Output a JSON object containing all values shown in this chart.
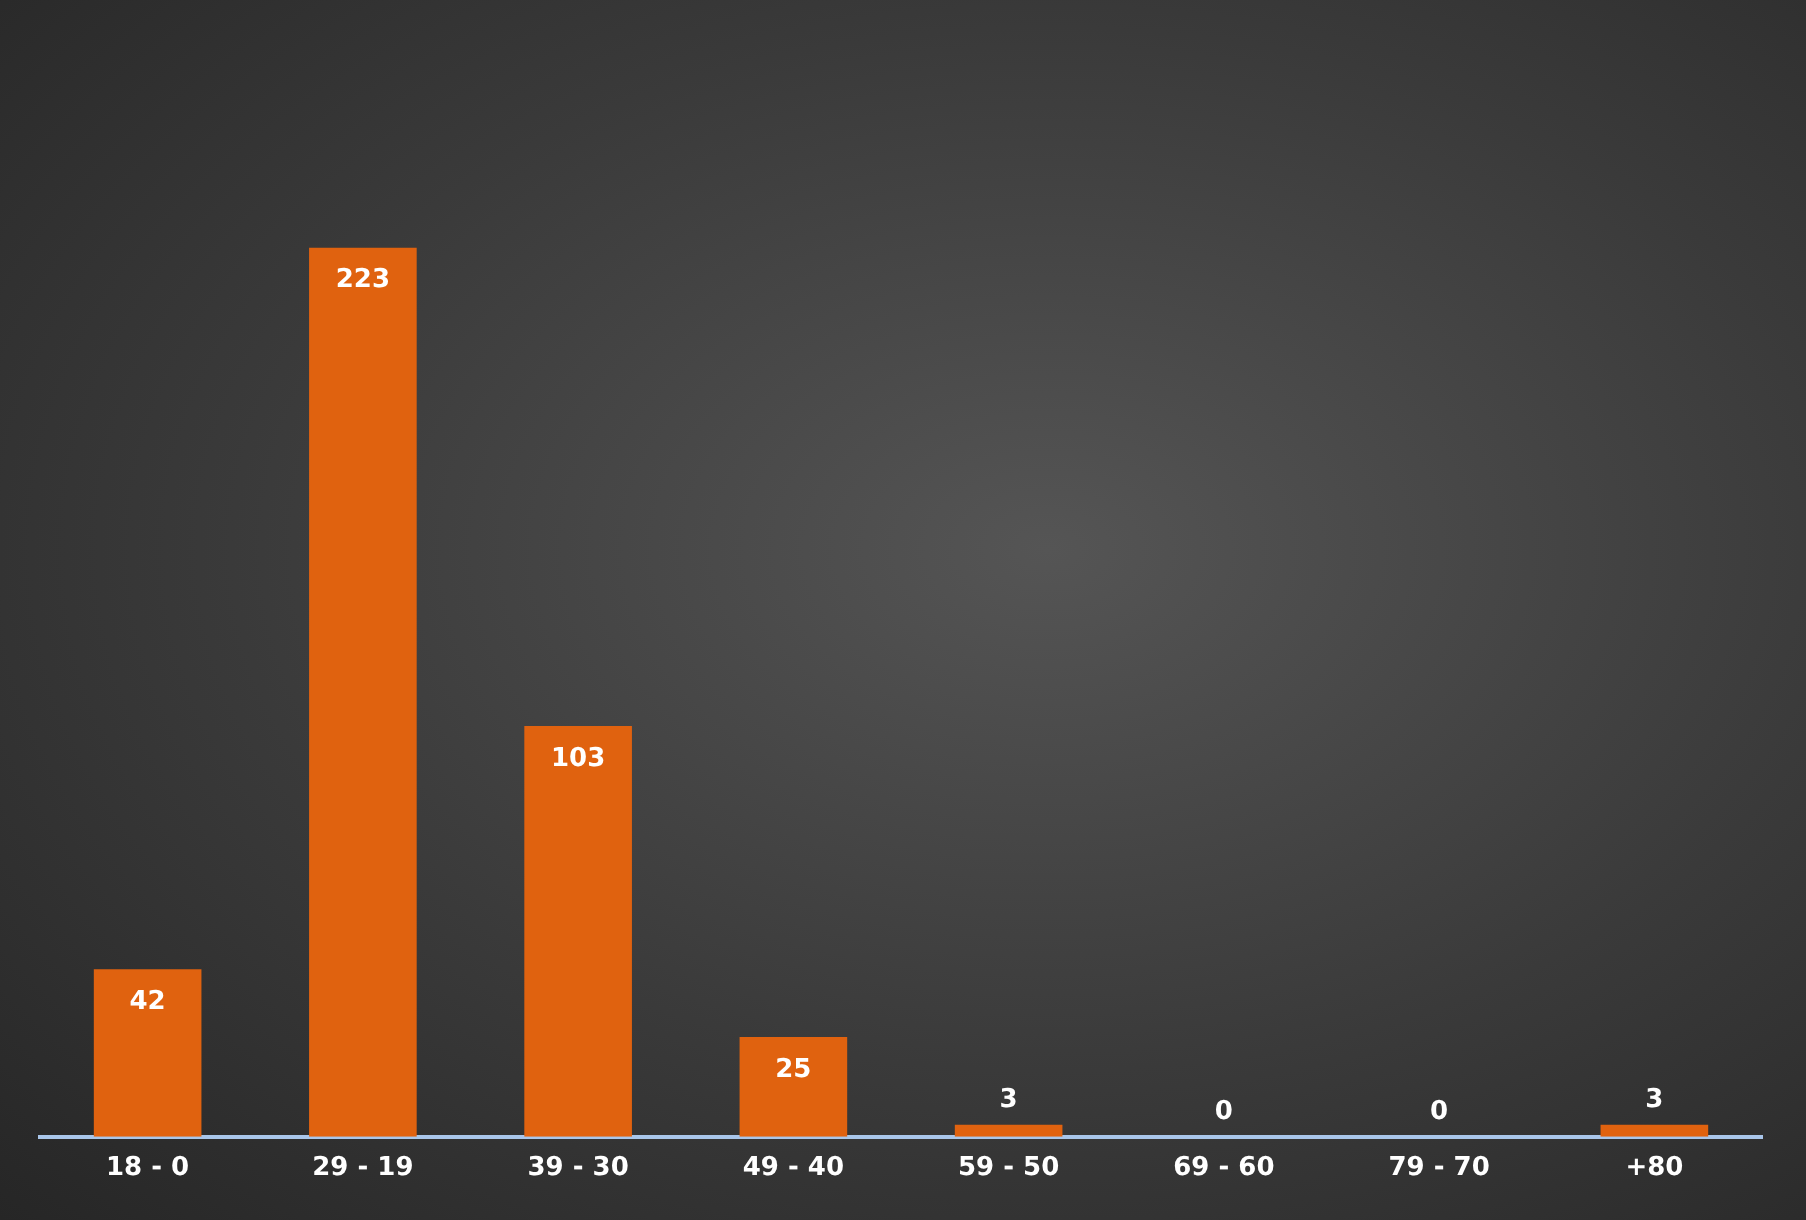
{
  "chart_data": {
    "type": "bar",
    "categories": [
      "18 - 0",
      "29 - 19",
      "39 - 30",
      "49 - 40",
      "59 - 50",
      "69 - 60",
      "79 - 70",
      "+80"
    ],
    "values": [
      42,
      223,
      103,
      25,
      3,
      0,
      0,
      3
    ],
    "color": "#e0620f",
    "data_labels": true
  }
}
